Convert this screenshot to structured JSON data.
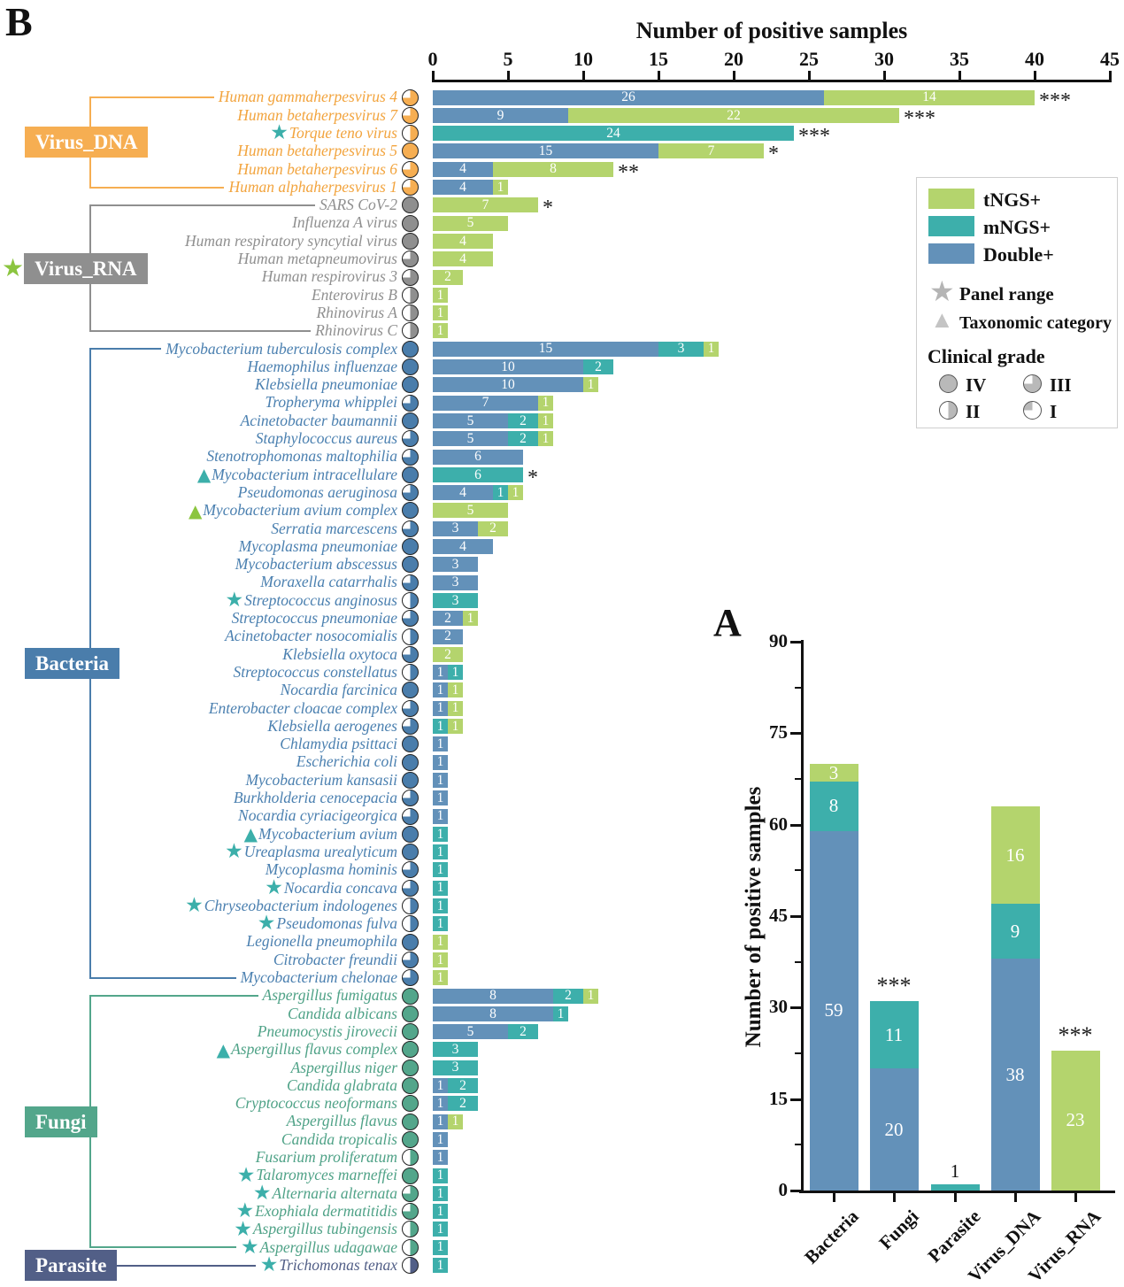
{
  "panel_labels": {
    "b": "B",
    "a": "A"
  },
  "colors": {
    "tngs": "#b4d46d",
    "mngs": "#3dafab",
    "double": "#6391b9",
    "marker_teal": "#3cafaa",
    "marker_green": "#8bc53f",
    "legend_gray": "#b9b9b9",
    "groups": {
      "Virus_DNA": {
        "text": "#f2a43e",
        "box": "#f6ae52"
      },
      "Virus_RNA": {
        "text": "#8f8f8f",
        "box": "#8f8f8f"
      },
      "Bacteria": {
        "text": "#4b80b0",
        "box": "#4a7dab"
      },
      "Fungi": {
        "text": "#4fa287",
        "box": "#53a68b"
      },
      "Parasite": {
        "text": "#525f87",
        "box": "#525f87"
      }
    }
  },
  "legend": {
    "items": [
      {
        "label": "tNGS+",
        "color_key": "tngs"
      },
      {
        "label": "mNGS+",
        "color_key": "mngs"
      },
      {
        "label": "Double+",
        "color_key": "double"
      }
    ],
    "panel_range_label": "Panel range",
    "taxonomic_label": "Taxonomic category",
    "clinical_grade_title": "Clinical grade",
    "grades": [
      {
        "label": "IV",
        "grade": "IV"
      },
      {
        "label": "III",
        "grade": "III"
      },
      {
        "label": "II",
        "grade": "II"
      },
      {
        "label": "I",
        "grade": "I"
      }
    ]
  },
  "chart_data": [
    {
      "panel": "B",
      "type": "bar",
      "orientation": "horizontal",
      "stacked": true,
      "xlabel": "Number of positive samples",
      "xlim": [
        0,
        45
      ],
      "xticks": [
        0,
        5,
        10,
        15,
        20,
        25,
        30,
        35,
        40,
        45
      ],
      "series_names": {
        "d": "Double+",
        "m": "mNGS+",
        "t": "tNGS+"
      },
      "groups": [
        {
          "name": "Virus_DNA",
          "rows": [
            {
              "name": "Human gammaherpesvirus 4",
              "grade": "III",
              "d": 26,
              "t": 14,
              "sig": "***"
            },
            {
              "name": "Human betaherpesvirus 7",
              "grade": "III",
              "d": 9,
              "t": 22,
              "sig": "***"
            },
            {
              "name": "Torque teno virus",
              "grade": "II",
              "marker": "star-teal",
              "m": 24,
              "sig": "***"
            },
            {
              "name": "Human betaherpesvirus 5",
              "grade": "IV",
              "d": 15,
              "t": 7,
              "sig": "*"
            },
            {
              "name": "Human betaherpesvirus 6",
              "grade": "III",
              "d": 4,
              "t": 8,
              "sig": "**"
            },
            {
              "name": "Human alphaherpesvirus 1",
              "grade": "III",
              "d": 4,
              "t": 1
            }
          ]
        },
        {
          "name": "Virus_RNA",
          "star": "green",
          "rows": [
            {
              "name": "SARS CoV-2",
              "grade": "IV",
              "t": 7,
              "sig": "*"
            },
            {
              "name": "Influenza A virus",
              "grade": "IV",
              "t": 5
            },
            {
              "name": "Human respiratory syncytial virus",
              "grade": "IV",
              "t": 4
            },
            {
              "name": "Human metapneumovirus",
              "grade": "III",
              "t": 4
            },
            {
              "name": "Human respirovirus 3",
              "grade": "III",
              "t": 2
            },
            {
              "name": "Enterovirus B",
              "grade": "II",
              "t": 1
            },
            {
              "name": "Rhinovirus A",
              "grade": "II",
              "t": 1
            },
            {
              "name": "Rhinovirus C",
              "grade": "II",
              "t": 1
            }
          ]
        },
        {
          "name": "Bacteria",
          "rows": [
            {
              "name": "Mycobacterium tuberculosis complex",
              "grade": "IV",
              "d": 15,
              "m": 3,
              "t": 1
            },
            {
              "name": "Haemophilus influenzae",
              "grade": "IV",
              "d": 10,
              "m": 2
            },
            {
              "name": "Klebsiella pneumoniae",
              "grade": "IV",
              "d": 10,
              "t": 1
            },
            {
              "name": "Tropheryma whipplei",
              "grade": "III",
              "d": 7,
              "t": 1
            },
            {
              "name": "Acinetobacter baumannii",
              "grade": "IV",
              "d": 5,
              "m": 2,
              "t": 1
            },
            {
              "name": "Staphylococcus aureus",
              "grade": "III",
              "d": 5,
              "m": 2,
              "t": 1
            },
            {
              "name": "Stenotrophomonas maltophilia",
              "grade": "III",
              "d": 6
            },
            {
              "name": "Mycobacterium intracellulare",
              "grade": "IV",
              "marker": "tri-teal",
              "m": 6,
              "sig": "*"
            },
            {
              "name": "Pseudomonas aeruginosa",
              "grade": "III",
              "d": 4,
              "m": 1,
              "t": 1
            },
            {
              "name": "Mycobacterium avium complex",
              "grade": "IV",
              "marker": "tri-green",
              "t": 5
            },
            {
              "name": "Serratia marcescens",
              "grade": "III",
              "d": 3,
              "t": 2
            },
            {
              "name": "Mycoplasma pneumoniae",
              "grade": "IV",
              "d": 4
            },
            {
              "name": "Mycobacterium abscessus",
              "grade": "IV",
              "d": 3
            },
            {
              "name": "Moraxella catarrhalis",
              "grade": "III",
              "d": 3
            },
            {
              "name": "Streptococcus anginosus",
              "grade": "II",
              "marker": "star-teal",
              "m": 3
            },
            {
              "name": "Streptococcus pneumoniae",
              "grade": "III",
              "d": 2,
              "t": 1
            },
            {
              "name": "Acinetobacter nosocomialis",
              "grade": "II",
              "d": 2
            },
            {
              "name": "Klebsiella oxytoca",
              "grade": "III",
              "t": 2
            },
            {
              "name": "Streptococcus constellatus",
              "grade": "II",
              "d": 1,
              "m": 1
            },
            {
              "name": "Nocardia farcinica",
              "grade": "IV",
              "d": 1,
              "t": 1
            },
            {
              "name": "Enterobacter cloacae complex",
              "grade": "III",
              "d": 1,
              "t": 1
            },
            {
              "name": "Klebsiella aerogenes",
              "grade": "III",
              "m": 1,
              "t": 1
            },
            {
              "name": "Chlamydia psittaci",
              "grade": "IV",
              "d": 1
            },
            {
              "name": "Escherichia coli",
              "grade": "IV",
              "d": 1
            },
            {
              "name": "Mycobacterium kansasii",
              "grade": "IV",
              "d": 1
            },
            {
              "name": "Burkholderia cenocepacia",
              "grade": "III",
              "d": 1
            },
            {
              "name": "Nocardia cyriacigeorgica",
              "grade": "III",
              "d": 1
            },
            {
              "name": "Mycobacterium avium",
              "grade": "IV",
              "marker": "tri-teal",
              "m": 1
            },
            {
              "name": "Ureaplasma urealyticum",
              "grade": "IV",
              "marker": "star-teal",
              "m": 1
            },
            {
              "name": "Mycoplasma hominis",
              "grade": "III",
              "m": 1
            },
            {
              "name": "Nocardia concava",
              "grade": "III",
              "marker": "star-teal",
              "m": 1
            },
            {
              "name": "Chryseobacterium indologenes",
              "grade": "II",
              "marker": "star-teal",
              "m": 1
            },
            {
              "name": "Pseudomonas fulva",
              "grade": "II",
              "marker": "star-teal",
              "m": 1
            },
            {
              "name": "Legionella pneumophila",
              "grade": "IV",
              "t": 1
            },
            {
              "name": "Citrobacter freundii",
              "grade": "III",
              "t": 1
            },
            {
              "name": "Mycobacterium chelonae",
              "grade": "III",
              "t": 1
            }
          ]
        },
        {
          "name": "Fungi",
          "rows": [
            {
              "name": "Aspergillus fumigatus",
              "grade": "IV",
              "d": 8,
              "m": 2,
              "t": 1
            },
            {
              "name": "Candida albicans",
              "grade": "IV",
              "d": 8,
              "m": 1
            },
            {
              "name": "Pneumocystis jirovecii",
              "grade": "IV",
              "d": 5,
              "m": 2
            },
            {
              "name": "Aspergillus flavus complex",
              "grade": "IV",
              "marker": "tri-teal",
              "m": 3
            },
            {
              "name": "Aspergillus niger",
              "grade": "IV",
              "m": 3
            },
            {
              "name": "Candida glabrata",
              "grade": "IV",
              "d": 1,
              "m": 2
            },
            {
              "name": "Cryptococcus neoformans",
              "grade": "IV",
              "d": 1,
              "m": 2
            },
            {
              "name": "Aspergillus flavus",
              "grade": "IV",
              "d": 1,
              "t": 1
            },
            {
              "name": "Candida tropicalis",
              "grade": "IV",
              "d": 1
            },
            {
              "name": "Fusarium proliferatum",
              "grade": "II",
              "d": 1
            },
            {
              "name": "Talaromyces marneffei",
              "grade": "IV",
              "marker": "star-teal",
              "m": 1
            },
            {
              "name": "Alternaria alternata",
              "grade": "III",
              "marker": "star-teal",
              "m": 1
            },
            {
              "name": "Exophiala dermatitidis",
              "grade": "III",
              "marker": "star-teal",
              "m": 1
            },
            {
              "name": "Aspergillus tubingensis",
              "grade": "II",
              "marker": "star-teal",
              "m": 1
            },
            {
              "name": "Aspergillus udagawae",
              "grade": "II",
              "marker": "star-teal",
              "m": 1
            }
          ]
        },
        {
          "name": "Parasite",
          "rows": [
            {
              "name": "Trichomonas tenax",
              "grade": "II",
              "marker": "star-teal",
              "m": 1
            }
          ]
        }
      ]
    },
    {
      "panel": "A",
      "type": "bar",
      "stacked": true,
      "categories": [
        "Bacteria",
        "Fungi",
        "Parasite",
        "Virus_DNA",
        "Virus_RNA"
      ],
      "series": [
        {
          "name": "Double+",
          "values": [
            59,
            20,
            0,
            38,
            0
          ]
        },
        {
          "name": "mNGS+",
          "values": [
            8,
            11,
            1,
            9,
            0
          ]
        },
        {
          "name": "tNGS+",
          "values": [
            3,
            0,
            0,
            16,
            23
          ]
        }
      ],
      "significance": [
        "",
        "***",
        "",
        "",
        "***"
      ],
      "value_above": [
        "",
        "",
        "1",
        "",
        ""
      ],
      "ylabel": "Number of positive samples",
      "ylim": [
        0,
        90
      ],
      "yticks": [
        0,
        15,
        30,
        45,
        60,
        75,
        90
      ]
    }
  ]
}
